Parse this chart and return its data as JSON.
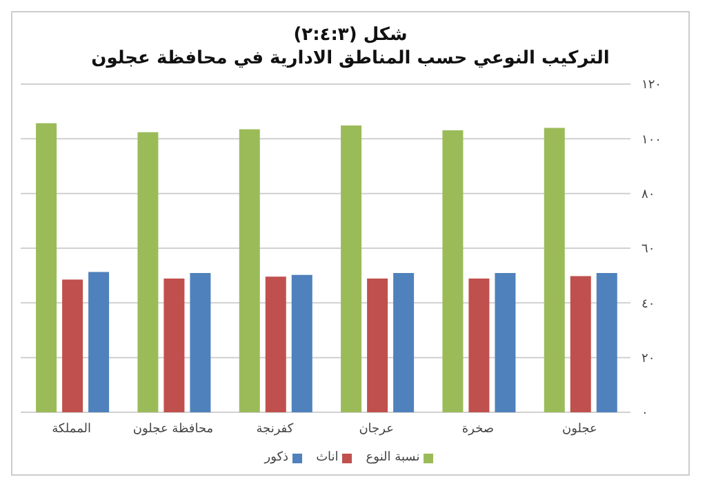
{
  "chart_data": {
    "type": "bar",
    "title": "شكل (٢:٤:٣)",
    "subtitle": "التركيب النوعي حسب المناطق الادارية في محافظة عجلون",
    "categories": [
      "المملكة",
      "محافظة عجلون",
      "كفرنجة",
      "عرجان",
      "صخرة",
      "عجلون"
    ],
    "series": [
      {
        "name": "نسبة النوع",
        "color": "#9bbb59",
        "values": [
          105.7,
          102.4,
          103.5,
          104.9,
          103.1,
          104.0
        ]
      },
      {
        "name": "اناث",
        "color": "#c0504d",
        "values": [
          48.5,
          48.9,
          49.6,
          48.9,
          48.9,
          49.8
        ]
      },
      {
        "name": "ذكور",
        "color": "#4f81bd",
        "values": [
          51.3,
          50.9,
          50.2,
          50.9,
          50.9,
          50.9
        ]
      }
    ],
    "ylim": [
      0,
      120
    ],
    "yticks": [
      {
        "value": 0,
        "label": "٠"
      },
      {
        "value": 20,
        "label": "٢٠"
      },
      {
        "value": 40,
        "label": "٤٠"
      },
      {
        "value": 60,
        "label": "٦٠"
      },
      {
        "value": 80,
        "label": "٨٠"
      },
      {
        "value": 100,
        "label": "١٠٠"
      },
      {
        "value": 120,
        "label": "١٢٠"
      }
    ],
    "grid": "y",
    "legend": "bottom"
  }
}
